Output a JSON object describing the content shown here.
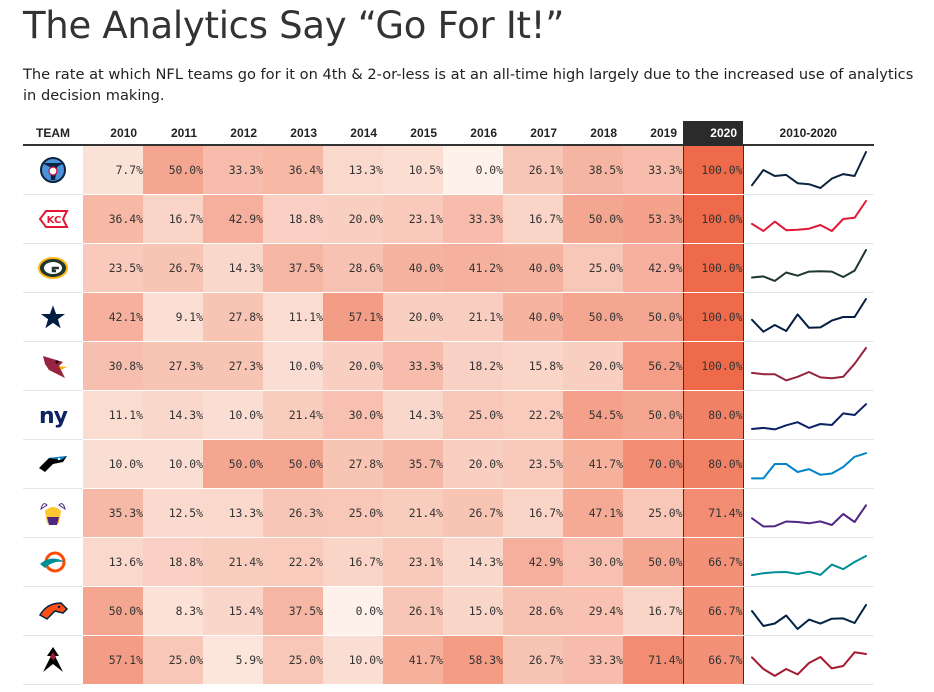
{
  "title": "The Analytics Say “Go For It!”",
  "subtitle": "The rate at which NFL teams go for it on 4th & 2-or-less is at an all-time high largely due to the increased use of analytics in decision making.",
  "chart_data": {
    "type": "table",
    "columns": {
      "team": "TEAM",
      "years": [
        "2010",
        "2011",
        "2012",
        "2013",
        "2014",
        "2015",
        "2016",
        "2017",
        "2018",
        "2019",
        "2020"
      ],
      "trend": "2010-2020"
    },
    "highlight_year": "2020",
    "colors": {
      "low": "#fdf1e9",
      "high": "#ee6a4a",
      "header_highlight": "#2b2b2b"
    },
    "rows": [
      {
        "team_icon": "titans-logo-icon",
        "color": "#0c2340",
        "values": [
          7.7,
          50.0,
          33.3,
          36.4,
          13.3,
          10.5,
          0.0,
          26.1,
          38.5,
          33.3,
          100.0
        ],
        "labels": [
          "7.7%",
          "50.0%",
          "33.3%",
          "36.4%",
          "13.3%",
          "10.5%",
          "0.0%",
          "26.1%",
          "38.5%",
          "33.3%",
          "100.0%"
        ]
      },
      {
        "team_icon": "chiefs-logo-icon",
        "color": "#e31837",
        "values": [
          36.4,
          16.7,
          42.9,
          18.8,
          20.0,
          23.1,
          33.3,
          16.7,
          50.0,
          53.3,
          100.0
        ],
        "labels": [
          "36.4%",
          "16.7%",
          "42.9%",
          "18.8%",
          "20.0%",
          "23.1%",
          "33.3%",
          "16.7%",
          "50.0%",
          "53.3%",
          "100.0%"
        ]
      },
      {
        "team_icon": "packers-logo-icon",
        "color": "#203731",
        "values": [
          23.5,
          26.7,
          14.3,
          37.5,
          28.6,
          40.0,
          41.2,
          40.0,
          25.0,
          42.9,
          100.0
        ],
        "labels": [
          "23.5%",
          "26.7%",
          "14.3%",
          "37.5%",
          "28.6%",
          "40.0%",
          "41.2%",
          "40.0%",
          "25.0%",
          "42.9%",
          "100.0%"
        ]
      },
      {
        "team_icon": "cowboys-logo-icon",
        "color": "#041e42",
        "values": [
          42.1,
          9.1,
          27.8,
          11.1,
          57.1,
          20.0,
          21.1,
          40.0,
          50.0,
          50.0,
          100.0
        ],
        "labels": [
          "42.1%",
          "9.1%",
          "27.8%",
          "11.1%",
          "57.1%",
          "20.0%",
          "21.1%",
          "40.0%",
          "50.0%",
          "50.0%",
          "100.0%"
        ]
      },
      {
        "team_icon": "cardinals-logo-icon",
        "color": "#97233f",
        "values": [
          30.8,
          27.3,
          27.3,
          10.0,
          20.0,
          33.3,
          18.2,
          15.8,
          20.0,
          56.2,
          100.0
        ],
        "labels": [
          "30.8%",
          "27.3%",
          "27.3%",
          "10.0%",
          "20.0%",
          "33.3%",
          "18.2%",
          "15.8%",
          "20.0%",
          "56.2%",
          "100.0%"
        ]
      },
      {
        "team_icon": "giants-logo-icon",
        "color": "#0b2265",
        "values": [
          11.1,
          14.3,
          10.0,
          21.4,
          30.0,
          14.3,
          25.0,
          22.2,
          54.5,
          50.0,
          80.0
        ],
        "labels": [
          "11.1%",
          "14.3%",
          "10.0%",
          "21.4%",
          "30.0%",
          "14.3%",
          "25.0%",
          "22.2%",
          "54.5%",
          "50.0%",
          "80.0%"
        ]
      },
      {
        "team_icon": "panthers-logo-icon",
        "color": "#0085ca",
        "values": [
          10.0,
          10.0,
          50.0,
          50.0,
          27.8,
          35.7,
          20.0,
          23.5,
          41.7,
          70.0,
          80.0
        ],
        "labels": [
          "10.0%",
          "10.0%",
          "50.0%",
          "50.0%",
          "27.8%",
          "35.7%",
          "20.0%",
          "23.5%",
          "41.7%",
          "70.0%",
          "80.0%"
        ]
      },
      {
        "team_icon": "vikings-logo-icon",
        "color": "#4f2683",
        "values": [
          35.3,
          12.5,
          13.3,
          26.3,
          25.0,
          21.4,
          26.7,
          16.7,
          47.1,
          25.0,
          71.4
        ],
        "labels": [
          "35.3%",
          "12.5%",
          "13.3%",
          "26.3%",
          "25.0%",
          "21.4%",
          "26.7%",
          "16.7%",
          "47.1%",
          "25.0%",
          "71.4%"
        ]
      },
      {
        "team_icon": "dolphins-logo-icon",
        "color": "#008e97",
        "values": [
          13.6,
          18.8,
          21.4,
          22.2,
          16.7,
          23.1,
          14.3,
          42.9,
          30.0,
          50.0,
          66.7
        ],
        "labels": [
          "13.6%",
          "18.8%",
          "21.4%",
          "22.2%",
          "16.7%",
          "23.1%",
          "14.3%",
          "42.9%",
          "30.0%",
          "50.0%",
          "66.7%"
        ]
      },
      {
        "team_icon": "broncos-logo-icon",
        "color": "#002244",
        "values": [
          50.0,
          8.3,
          15.4,
          37.5,
          0.0,
          26.1,
          15.0,
          28.6,
          29.4,
          16.7,
          66.7
        ],
        "labels": [
          "50.0%",
          "8.3%",
          "15.4%",
          "37.5%",
          "0.0%",
          "26.1%",
          "15.0%",
          "28.6%",
          "29.4%",
          "16.7%",
          "66.7%"
        ]
      },
      {
        "team_icon": "falcons-logo-icon",
        "color": "#a71930",
        "values": [
          57.1,
          25.0,
          5.9,
          25.0,
          10.0,
          41.7,
          58.3,
          26.7,
          33.3,
          71.4,
          66.7
        ],
        "labels": [
          "57.1%",
          "25.0%",
          "5.9%",
          "25.0%",
          "10.0%",
          "41.7%",
          "58.3%",
          "26.7%",
          "33.3%",
          "71.4%",
          "66.7%"
        ]
      }
    ]
  }
}
